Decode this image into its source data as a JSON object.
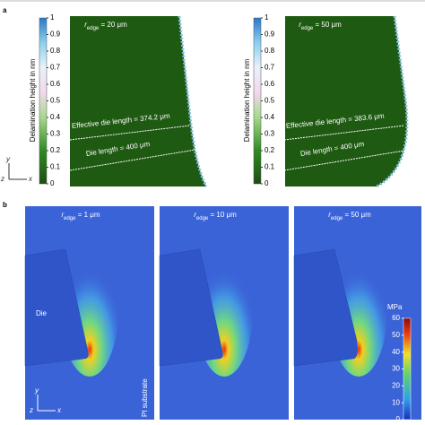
{
  "panel_a": {
    "label": "a",
    "axes": {
      "y": "y",
      "z": "z",
      "x": "x"
    },
    "images": [
      {
        "colorbar_label": "Delamination height in nm",
        "colorbar_ticks": [
          1,
          0.9,
          0.8,
          0.7,
          0.6,
          0.5,
          0.4,
          0.3,
          0.2,
          0.1,
          0
        ],
        "symbol": "r",
        "subscript": "edge",
        "value": "= 20 μm",
        "effective": "Effective die length = 374.2 μm",
        "die": "Die length = 400 μm"
      },
      {
        "colorbar_label": "Delamination height in nm",
        "colorbar_ticks": [
          1,
          0.9,
          0.8,
          0.7,
          0.6,
          0.5,
          0.4,
          0.3,
          0.2,
          0.1,
          0
        ],
        "symbol": "r",
        "subscript": "edge",
        "value": "= 50 μm",
        "effective": "Effective die length = 383.6 μm",
        "die": "Die length = 400 μm"
      }
    ]
  },
  "panel_b": {
    "label": "b",
    "die": "Die",
    "substrate": "PI substrate",
    "colorbar_unit": "MPa",
    "colorbar_ticks": [
      60,
      50,
      40,
      30,
      20,
      10,
      0
    ],
    "axes": {
      "y": "y",
      "z": "z",
      "x": "x"
    },
    "images": [
      {
        "symbol": "r",
        "subscript": "edge",
        "value": "= 1 μm"
      },
      {
        "symbol": "r",
        "subscript": "edge",
        "value": "= 10 μm"
      },
      {
        "symbol": "r",
        "subscript": "edge",
        "value": "= 50 μm"
      }
    ]
  }
}
